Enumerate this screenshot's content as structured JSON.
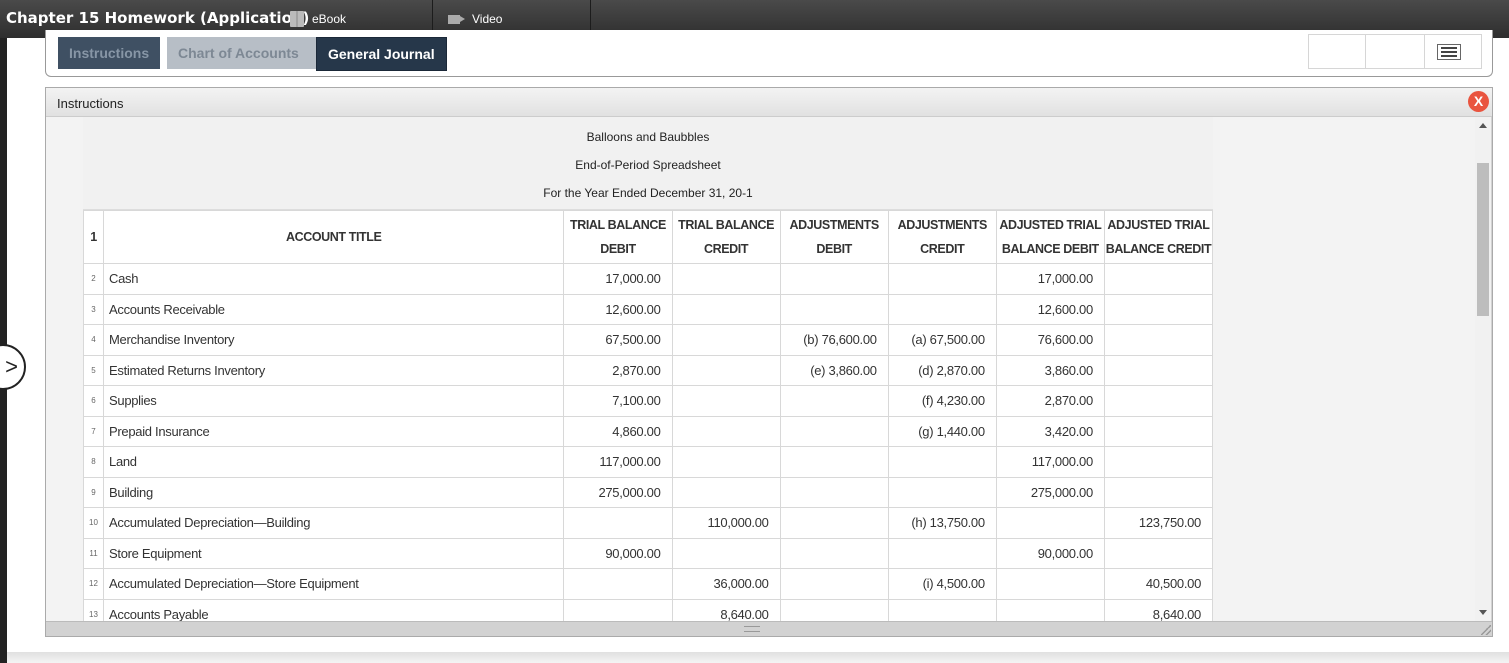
{
  "topbar": {
    "title": "Chapter 15 Homework (Application)",
    "ebook_label": "eBook",
    "video_label": "Video"
  },
  "tabs": {
    "instructions": "Instructions",
    "chart_of_accounts": "Chart of Accounts",
    "general_journal": "General Journal"
  },
  "dialog": {
    "title": "Instructions",
    "close_label": "X"
  },
  "sheet": {
    "company": "Balloons and Baubbles",
    "report": "End-of-Period Spreadsheet",
    "period": "For the Year Ended December 31, 20-1",
    "header_row": "1",
    "columns": {
      "account": "ACCOUNT TITLE",
      "tb_debit_1": "TRIAL BALANCE",
      "tb_debit_2": "DEBIT",
      "tb_credit_1": "TRIAL BALANCE",
      "tb_credit_2": "CREDIT",
      "adj_debit_1": "ADJUSTMENTS",
      "adj_debit_2": "DEBIT",
      "adj_credit_1": "ADJUSTMENTS",
      "adj_credit_2": "CREDIT",
      "atb_debit_1": "ADJUSTED TRIAL",
      "atb_debit_2": "BALANCE DEBIT",
      "atb_credit_1": "ADJUSTED TRIAL",
      "atb_credit_2": "BALANCE CREDIT"
    },
    "rows": [
      {
        "n": "2",
        "account": "Cash",
        "tb_dr": "17,000.00",
        "tb_cr": "",
        "adj_dr": "",
        "adj_cr": "",
        "atb_dr": "17,000.00",
        "atb_cr": ""
      },
      {
        "n": "3",
        "account": "Accounts Receivable",
        "tb_dr": "12,600.00",
        "tb_cr": "",
        "adj_dr": "",
        "adj_cr": "",
        "atb_dr": "12,600.00",
        "atb_cr": ""
      },
      {
        "n": "4",
        "account": "Merchandise Inventory",
        "tb_dr": "67,500.00",
        "tb_cr": "",
        "adj_dr": "(b) 76,600.00",
        "adj_cr": "(a) 67,500.00",
        "atb_dr": "76,600.00",
        "atb_cr": ""
      },
      {
        "n": "5",
        "account": "Estimated Returns Inventory",
        "tb_dr": "2,870.00",
        "tb_cr": "",
        "adj_dr": "(e) 3,860.00",
        "adj_cr": "(d) 2,870.00",
        "atb_dr": "3,860.00",
        "atb_cr": ""
      },
      {
        "n": "6",
        "account": "Supplies",
        "tb_dr": "7,100.00",
        "tb_cr": "",
        "adj_dr": "",
        "adj_cr": "(f) 4,230.00",
        "atb_dr": "2,870.00",
        "atb_cr": ""
      },
      {
        "n": "7",
        "account": "Prepaid Insurance",
        "tb_dr": "4,860.00",
        "tb_cr": "",
        "adj_dr": "",
        "adj_cr": "(g) 1,440.00",
        "atb_dr": "3,420.00",
        "atb_cr": ""
      },
      {
        "n": "8",
        "account": "Land",
        "tb_dr": "117,000.00",
        "tb_cr": "",
        "adj_dr": "",
        "adj_cr": "",
        "atb_dr": "117,000.00",
        "atb_cr": ""
      },
      {
        "n": "9",
        "account": "Building",
        "tb_dr": "275,000.00",
        "tb_cr": "",
        "adj_dr": "",
        "adj_cr": "",
        "atb_dr": "275,000.00",
        "atb_cr": ""
      },
      {
        "n": "10",
        "account": "Accumulated Depreciation—Building",
        "tb_dr": "",
        "tb_cr": "110,000.00",
        "adj_dr": "",
        "adj_cr": "(h) 13,750.00",
        "atb_dr": "",
        "atb_cr": "123,750.00"
      },
      {
        "n": "11",
        "account": "Store Equipment",
        "tb_dr": "90,000.00",
        "tb_cr": "",
        "adj_dr": "",
        "adj_cr": "",
        "atb_dr": "90,000.00",
        "atb_cr": ""
      },
      {
        "n": "12",
        "account": "Accumulated Depreciation—Store Equipment",
        "tb_dr": "",
        "tb_cr": "36,000.00",
        "adj_dr": "",
        "adj_cr": "(i) 4,500.00",
        "atb_dr": "",
        "atb_cr": "40,500.00"
      },
      {
        "n": "13",
        "account": "Accounts Payable",
        "tb_dr": "",
        "tb_cr": "8,640.00",
        "adj_dr": "",
        "adj_cr": "",
        "atb_dr": "",
        "atb_cr": "8,640.00"
      }
    ]
  },
  "icons": {
    "ebook": "book-icon",
    "video": "video-icon",
    "menu": "menu-icon",
    "close": "close-icon",
    "side": "chevron-right-icon"
  }
}
